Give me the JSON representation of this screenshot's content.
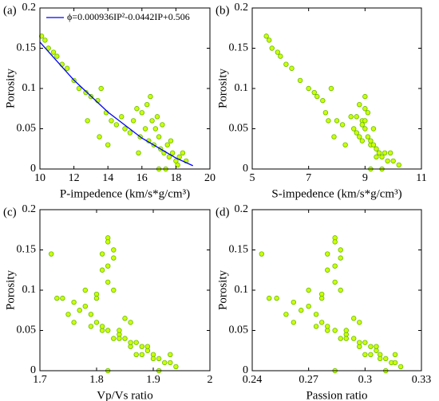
{
  "chart_data": [
    {
      "type": "scatter",
      "tag": "(a)",
      "xlabel": "P-impedence (km/s*g/cm³)",
      "ylabel": "Porosity",
      "xlim": [
        10,
        20
      ],
      "xticks": [
        10,
        12,
        14,
        16,
        18,
        20
      ],
      "ylim": [
        0,
        0.2
      ],
      "yticks": [
        0,
        0.05,
        0.1,
        0.15,
        0.2
      ],
      "color": "#ccff00",
      "edge_color": "#66bb00",
      "x": [
        10.1,
        10.3,
        10.5,
        10.8,
        11.0,
        11.3,
        11.6,
        12.0,
        12.3,
        12.7,
        13.0,
        13.4,
        13.6,
        13.9,
        14.2,
        14.5,
        14.8,
        15.0,
        15.3,
        15.5,
        15.7,
        15.9,
        16.0,
        16.2,
        16.4,
        16.5,
        16.7,
        16.8,
        17.0,
        17.1,
        17.3,
        17.5,
        17.6,
        17.8,
        18.0,
        18.2,
        18.4,
        18.6,
        17.0,
        17.4,
        16.6,
        16.9,
        17.2,
        16.3,
        15.8,
        17.7,
        18.1,
        13.5,
        14.0,
        12.8
      ],
      "values": [
        0.165,
        0.16,
        0.15,
        0.145,
        0.14,
        0.13,
        0.125,
        0.11,
        0.1,
        0.095,
        0.09,
        0.085,
        0.1,
        0.07,
        0.06,
        0.055,
        0.065,
        0.05,
        0.045,
        0.06,
        0.075,
        0.04,
        0.07,
        0.05,
        0.035,
        0.09,
        0.03,
        0.05,
        0.04,
        0.025,
        0.02,
        0.03,
        0.015,
        0.02,
        0.01,
        0.015,
        0.02,
        0.01,
        0,
        0,
        0.06,
        0.065,
        0.055,
        0.08,
        0.02,
        0.035,
        0.005,
        0.04,
        0.03,
        0.06
      ],
      "fit": {
        "name": "ϕ=0.000936IP²-0.0442IP+0.506",
        "color": "#0000ff",
        "x": [
          10,
          12,
          14,
          16,
          18,
          19
        ],
        "values": [
          0.1576,
          0.1104,
          0.0707,
          0.0384,
          0.0137,
          0.0041
        ]
      }
    },
    {
      "type": "scatter",
      "tag": "(b)",
      "xlabel": "S-impedence (km/s*g/cm³)",
      "ylabel": "Porosity",
      "xlim": [
        5,
        11
      ],
      "xticks": [
        5,
        7,
        9,
        11
      ],
      "ylim": [
        0,
        0.2
      ],
      "yticks": [
        0,
        0.05,
        0.1,
        0.15,
        0.2
      ],
      "color": "#ccff00",
      "edge_color": "#66bb00",
      "x": [
        5.5,
        5.6,
        5.7,
        5.9,
        6.0,
        6.2,
        6.4,
        6.7,
        7.0,
        7.2,
        7.3,
        7.5,
        7.8,
        7.6,
        8.0,
        8.2,
        8.5,
        8.6,
        8.7,
        8.9,
        9.0,
        8.8,
        9.1,
        9.0,
        8.9,
        9.0,
        9.2,
        9.3,
        9.1,
        9.4,
        9.5,
        9.3,
        9.6,
        9.7,
        9.8,
        9.4,
        9.9,
        10.0,
        9.2,
        9.6,
        9.0,
        8.7,
        8.9,
        8.8,
        9.5,
        9.2,
        10.2,
        7.9,
        8.3,
        7.7
      ],
      "values": [
        0.165,
        0.16,
        0.15,
        0.145,
        0.14,
        0.13,
        0.125,
        0.11,
        0.1,
        0.095,
        0.09,
        0.085,
        0.1,
        0.07,
        0.06,
        0.055,
        0.065,
        0.05,
        0.045,
        0.06,
        0.075,
        0.04,
        0.07,
        0.05,
        0.035,
        0.09,
        0.03,
        0.05,
        0.04,
        0.025,
        0.02,
        0.03,
        0.015,
        0.02,
        0.01,
        0.015,
        0.02,
        0.01,
        0,
        0,
        0.06,
        0.065,
        0.055,
        0.08,
        0.02,
        0.035,
        0.005,
        0.04,
        0.03,
        0.06
      ]
    },
    {
      "type": "scatter",
      "tag": "(c)",
      "xlabel": "Vp/Vs ratio",
      "ylabel": "Porosity",
      "xlim": [
        1.7,
        2
      ],
      "xticks": [
        1.7,
        1.8,
        1.9,
        2
      ],
      "ylim": [
        0,
        0.2
      ],
      "yticks": [
        0,
        0.05,
        0.1,
        0.15,
        0.2
      ],
      "color": "#ccff00",
      "edge_color": "#66bb00",
      "x": [
        1.82,
        1.82,
        1.83,
        1.81,
        1.83,
        1.82,
        1.81,
        1.82,
        1.83,
        1.8,
        1.74,
        1.76,
        1.78,
        1.75,
        1.8,
        1.79,
        1.85,
        1.81,
        1.84,
        1.86,
        1.77,
        1.83,
        1.79,
        1.84,
        1.87,
        1.8,
        1.88,
        1.82,
        1.85,
        1.89,
        1.9,
        1.86,
        1.91,
        1.88,
        1.92,
        1.9,
        1.87,
        1.93,
        1.82,
        1.91,
        1.72,
        1.73,
        1.81,
        1.78,
        1.93,
        1.86,
        1.94,
        1.84,
        1.89,
        1.76
      ],
      "values": [
        0.165,
        0.16,
        0.15,
        0.145,
        0.14,
        0.13,
        0.125,
        0.11,
        0.1,
        0.095,
        0.09,
        0.085,
        0.1,
        0.07,
        0.06,
        0.055,
        0.065,
        0.05,
        0.045,
        0.06,
        0.075,
        0.04,
        0.07,
        0.05,
        0.035,
        0.09,
        0.03,
        0.05,
        0.04,
        0.025,
        0.02,
        0.03,
        0.015,
        0.02,
        0.01,
        0.015,
        0.02,
        0.01,
        0,
        0,
        0.145,
        0.09,
        0.055,
        0.08,
        0.02,
        0.035,
        0.005,
        0.04,
        0.03,
        0.06
      ]
    },
    {
      "type": "scatter",
      "tag": "(d)",
      "xlabel": "Passion ratio",
      "ylabel": "Porosity",
      "xlim": [
        0.24,
        0.33
      ],
      "xticks": [
        0.24,
        0.27,
        0.3,
        0.33
      ],
      "ylim": [
        0,
        0.2
      ],
      "yticks": [
        0,
        0.05,
        0.1,
        0.15,
        0.2
      ],
      "color": "#ccff00",
      "edge_color": "#66bb00",
      "x": [
        0.284,
        0.284,
        0.287,
        0.28,
        0.287,
        0.284,
        0.28,
        0.284,
        0.287,
        0.277,
        0.253,
        0.262,
        0.27,
        0.258,
        0.277,
        0.274,
        0.294,
        0.28,
        0.29,
        0.297,
        0.266,
        0.287,
        0.274,
        0.29,
        0.3,
        0.277,
        0.303,
        0.284,
        0.294,
        0.306,
        0.308,
        0.297,
        0.311,
        0.303,
        0.314,
        0.308,
        0.3,
        0.316,
        0.284,
        0.311,
        0.245,
        0.249,
        0.28,
        0.27,
        0.316,
        0.297,
        0.319,
        0.29,
        0.306,
        0.262
      ],
      "values": [
        0.165,
        0.16,
        0.15,
        0.145,
        0.14,
        0.13,
        0.125,
        0.11,
        0.1,
        0.095,
        0.09,
        0.085,
        0.1,
        0.07,
        0.06,
        0.055,
        0.065,
        0.05,
        0.045,
        0.06,
        0.075,
        0.04,
        0.07,
        0.05,
        0.035,
        0.09,
        0.03,
        0.05,
        0.04,
        0.025,
        0.02,
        0.03,
        0.015,
        0.02,
        0.01,
        0.015,
        0.02,
        0.01,
        0,
        0,
        0.145,
        0.09,
        0.055,
        0.08,
        0.02,
        0.035,
        0.005,
        0.04,
        0.03,
        0.06
      ]
    }
  ]
}
